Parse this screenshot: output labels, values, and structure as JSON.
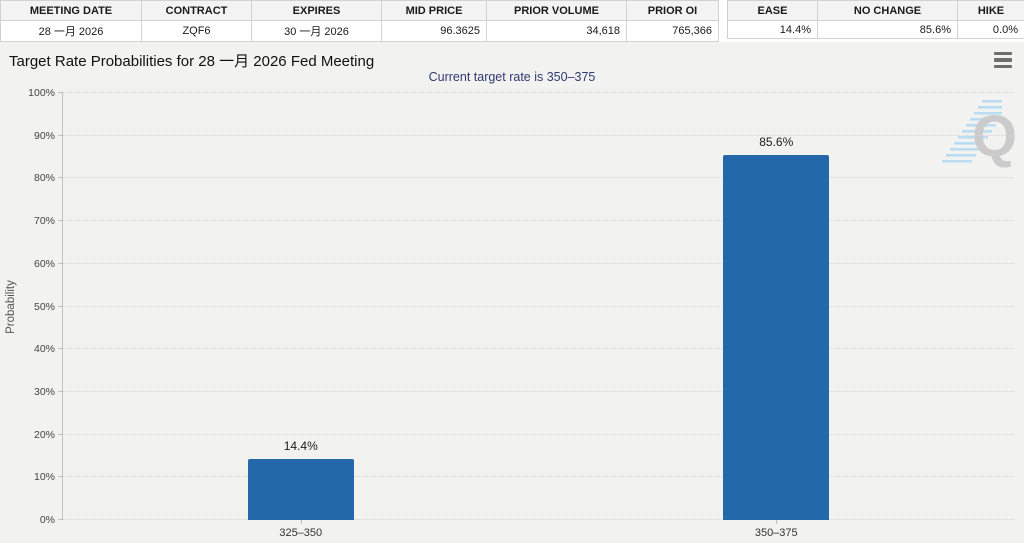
{
  "accent_color": "#2369aa",
  "tables": {
    "contract_table": {
      "columns": [
        {
          "label": "MEETING DATE",
          "value": "28 一月 2026",
          "align": "center"
        },
        {
          "label": "CONTRACT",
          "value": "ZQF6",
          "align": "center"
        },
        {
          "label": "EXPIRES",
          "value": "30 一月 2026",
          "align": "center"
        },
        {
          "label": "MID PRICE",
          "value": "96.3625",
          "align": "right"
        },
        {
          "label": "PRIOR VOLUME",
          "value": "34,618",
          "align": "right"
        },
        {
          "label": "PRIOR OI",
          "value": "765,366",
          "align": "right"
        }
      ]
    },
    "probability_table": {
      "columns": [
        {
          "label": "EASE",
          "value": "14.4%",
          "align": "right"
        },
        {
          "label": "NO CHANGE",
          "value": "85.6%",
          "align": "right"
        },
        {
          "label": "HIKE",
          "value": "0.0%",
          "align": "right"
        }
      ]
    }
  },
  "header": {
    "title": "Target Rate Probabilities for 28 一月 2026 Fed Meeting",
    "subtitle": "Current target rate is 350–375",
    "menu_icon": "hamburger-icon"
  },
  "watermark_letter": "Q",
  "chart_data": {
    "type": "bar",
    "title": "Target Rate Probabilities for 28 一月 2026 Fed Meeting",
    "subtitle": "Current target rate is 350–375",
    "categories": [
      "325–350",
      "350–375"
    ],
    "values": [
      14.4,
      85.6
    ],
    "value_labels": [
      "14.4%",
      "85.6%"
    ],
    "xlabel": "",
    "ylabel": "Probability",
    "ylim": [
      0,
      100
    ],
    "ytick_step": 10,
    "ytick_suffix": "%",
    "grid": "dotted-horizontal",
    "legend": "none",
    "bar_color": "#2369aa"
  }
}
